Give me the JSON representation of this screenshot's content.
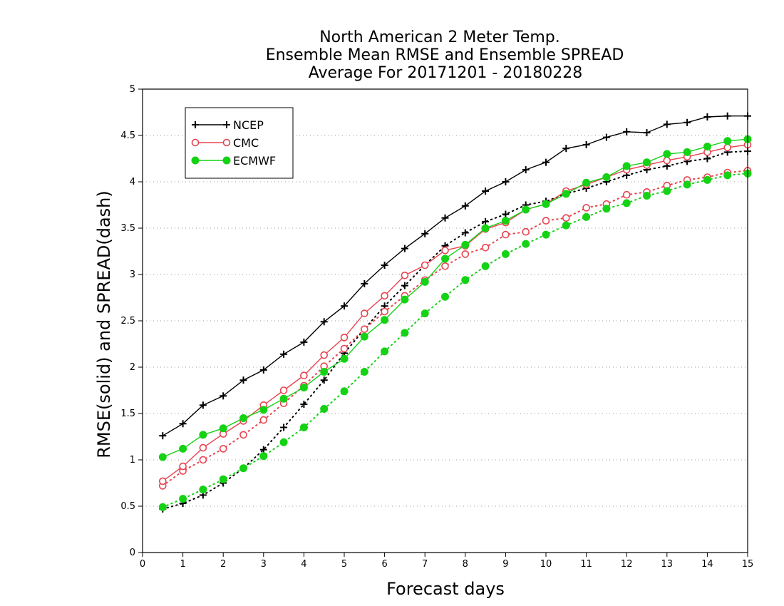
{
  "chart_data": {
    "type": "line",
    "title_lines": [
      "North American 2 Meter Temp.",
      "Ensemble Mean RMSE and Ensemble SPREAD",
      "Average For 20171201 - 20180228"
    ],
    "xlabel": "Forecast days",
    "ylabel": "RMSE(solid) and SPREAD(dash)",
    "xlim": [
      0,
      15
    ],
    "ylim": [
      0,
      5
    ],
    "xticks": [
      "0",
      "1",
      "2",
      "3",
      "4",
      "5",
      "6",
      "7",
      "8",
      "9",
      "10",
      "11",
      "12",
      "13",
      "14",
      "15"
    ],
    "yticks": [
      "0",
      "0.5",
      "1",
      "1.5",
      "2",
      "2.5",
      "3",
      "3.5",
      "4",
      "4.5",
      "5"
    ],
    "grid": "horizontal dotted",
    "legend_position": "top-left",
    "x": [
      0.5,
      1,
      1.5,
      2,
      2.5,
      3,
      3.5,
      4,
      4.5,
      5,
      5.5,
      6,
      6.5,
      7,
      7.5,
      8,
      8.5,
      9,
      9.5,
      10,
      10.5,
      11,
      11.5,
      12,
      12.5,
      13,
      13.5,
      14,
      14.5,
      15
    ],
    "series": [
      {
        "name": "NCEP",
        "color": "#000000",
        "marker": "plus",
        "rmse": [
          1.26,
          1.39,
          1.59,
          1.69,
          1.86,
          1.97,
          2.14,
          2.27,
          2.49,
          2.66,
          2.9,
          3.1,
          3.28,
          3.44,
          3.61,
          3.74,
          3.9,
          4.0,
          4.13,
          4.21,
          4.36,
          4.4,
          4.48,
          4.54,
          4.53,
          4.62,
          4.64,
          4.7,
          4.71,
          4.71
        ],
        "spread": [
          0.47,
          0.53,
          0.62,
          0.75,
          0.91,
          1.11,
          1.35,
          1.6,
          1.86,
          2.15,
          2.41,
          2.66,
          2.88,
          3.1,
          3.31,
          3.45,
          3.57,
          3.65,
          3.75,
          3.79,
          3.87,
          3.93,
          4.0,
          4.07,
          4.13,
          4.17,
          4.22,
          4.25,
          4.32,
          4.33
        ]
      },
      {
        "name": "CMC",
        "color": "#e8434f",
        "marker": "open-circle",
        "rmse": [
          0.77,
          0.93,
          1.13,
          1.28,
          1.42,
          1.59,
          1.75,
          1.91,
          2.13,
          2.32,
          2.58,
          2.77,
          2.99,
          3.1,
          3.26,
          3.31,
          3.49,
          3.56,
          3.7,
          3.76,
          3.9,
          3.97,
          4.05,
          4.13,
          4.18,
          4.23,
          4.27,
          4.32,
          4.37,
          4.4
        ],
        "spread": [
          0.72,
          0.88,
          1.0,
          1.12,
          1.27,
          1.43,
          1.61,
          1.8,
          2.01,
          2.2,
          2.41,
          2.6,
          2.77,
          2.94,
          3.09,
          3.22,
          3.29,
          3.43,
          3.46,
          3.58,
          3.61,
          3.72,
          3.76,
          3.86,
          3.89,
          3.96,
          4.02,
          4.05,
          4.1,
          4.12
        ]
      },
      {
        "name": "ECMWF",
        "color": "#14d214",
        "marker": "filled-circle",
        "rmse": [
          1.03,
          1.12,
          1.27,
          1.34,
          1.45,
          1.54,
          1.66,
          1.78,
          1.95,
          2.09,
          2.33,
          2.51,
          2.73,
          2.92,
          3.17,
          3.32,
          3.5,
          3.58,
          3.7,
          3.76,
          3.87,
          3.99,
          4.05,
          4.17,
          4.21,
          4.3,
          4.32,
          4.38,
          4.44,
          4.46
        ],
        "spread": [
          0.49,
          0.58,
          0.68,
          0.79,
          0.91,
          1.04,
          1.19,
          1.35,
          1.55,
          1.74,
          1.95,
          2.17,
          2.37,
          2.58,
          2.76,
          2.94,
          3.09,
          3.22,
          3.33,
          3.43,
          3.53,
          3.62,
          3.71,
          3.77,
          3.85,
          3.9,
          3.97,
          4.02,
          4.07,
          4.09
        ]
      }
    ]
  }
}
